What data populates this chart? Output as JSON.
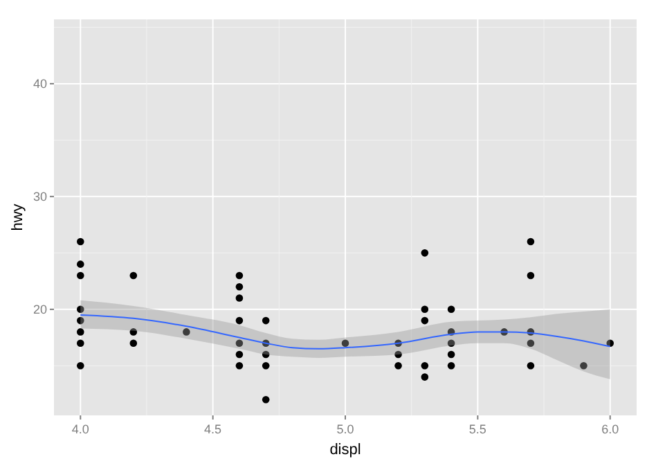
{
  "chart_data": {
    "type": "scatter",
    "xlabel": "displ",
    "ylabel": "hwy",
    "xlim": [
      3.9,
      6.1
    ],
    "ylim": [
      10.6,
      45.7
    ],
    "xticks": [
      {
        "value": 4,
        "label": "4.0"
      },
      {
        "value": 4.25,
        "label": null
      },
      4.5,
      {
        "value": 4.75,
        "label": null
      },
      {
        "value": 5,
        "label": "5.0"
      },
      {
        "value": 5.25,
        "label": null
      },
      5.5,
      {
        "value": 5.75,
        "label": null
      },
      {
        "value": 6,
        "label": "6.0"
      }
    ],
    "yticks": [
      {
        "value": 15,
        "label": null
      },
      20,
      {
        "value": 25,
        "label": null
      },
      30,
      {
        "value": 35,
        "label": null
      },
      40,
      {
        "value": 45,
        "label": null
      }
    ],
    "grid": true,
    "series": [
      {
        "color": "#000000",
        "marker": "circle",
        "x": [
          4,
          4,
          4,
          4,
          4,
          4,
          4,
          4,
          4.2,
          4.2,
          4.2,
          4.4,
          4.6,
          4.6,
          4.6,
          4.6,
          4.6,
          4.6,
          4.6,
          4.7,
          4.7,
          4.7,
          4.7,
          4.7,
          5,
          5.2,
          5.2,
          5.2,
          5.3,
          5.3,
          5.3,
          5.3,
          5.3,
          5.4,
          5.4,
          5.4,
          5.4,
          5.4,
          5.6,
          5.7,
          5.7,
          5.7,
          5.7,
          5.7,
          5.9,
          6
        ],
        "values": [
          26,
          24,
          23,
          20,
          19,
          18,
          17,
          15,
          23,
          18,
          17,
          18,
          23,
          22,
          21,
          19,
          17,
          16,
          15,
          19,
          17,
          16,
          15,
          12,
          17,
          17,
          16,
          15,
          25,
          20,
          19,
          15,
          14,
          20,
          18,
          17,
          16,
          15,
          18,
          26,
          23,
          18,
          17,
          15,
          15,
          17
        ]
      },
      {
        "type": "line",
        "color": "#3366ff",
        "marker": "none",
        "x": [
          4,
          4.2,
          4.4,
          4.6,
          4.7,
          4.8,
          4.9,
          5,
          5.2,
          5.4,
          5.5,
          5.6,
          5.7,
          5.8,
          5.9,
          6
        ],
        "values": [
          19.5,
          19.2,
          18.5,
          17.5,
          17,
          16.6,
          16.5,
          16.6,
          17,
          17.8,
          18,
          18,
          17.9,
          17.6,
          17.2,
          16.7
        ],
        "lower": [
          18.3,
          18.1,
          17.4,
          16.5,
          16,
          15.8,
          15.7,
          15.8,
          16,
          16.8,
          17,
          17,
          16.5,
          15.5,
          14.5,
          13.8
        ],
        "upper": [
          20.8,
          20.3,
          19.5,
          18.6,
          17.9,
          17.4,
          17.3,
          17.5,
          18,
          18.9,
          19,
          19.1,
          19.3,
          19.6,
          19.8,
          20
        ]
      }
    ]
  }
}
